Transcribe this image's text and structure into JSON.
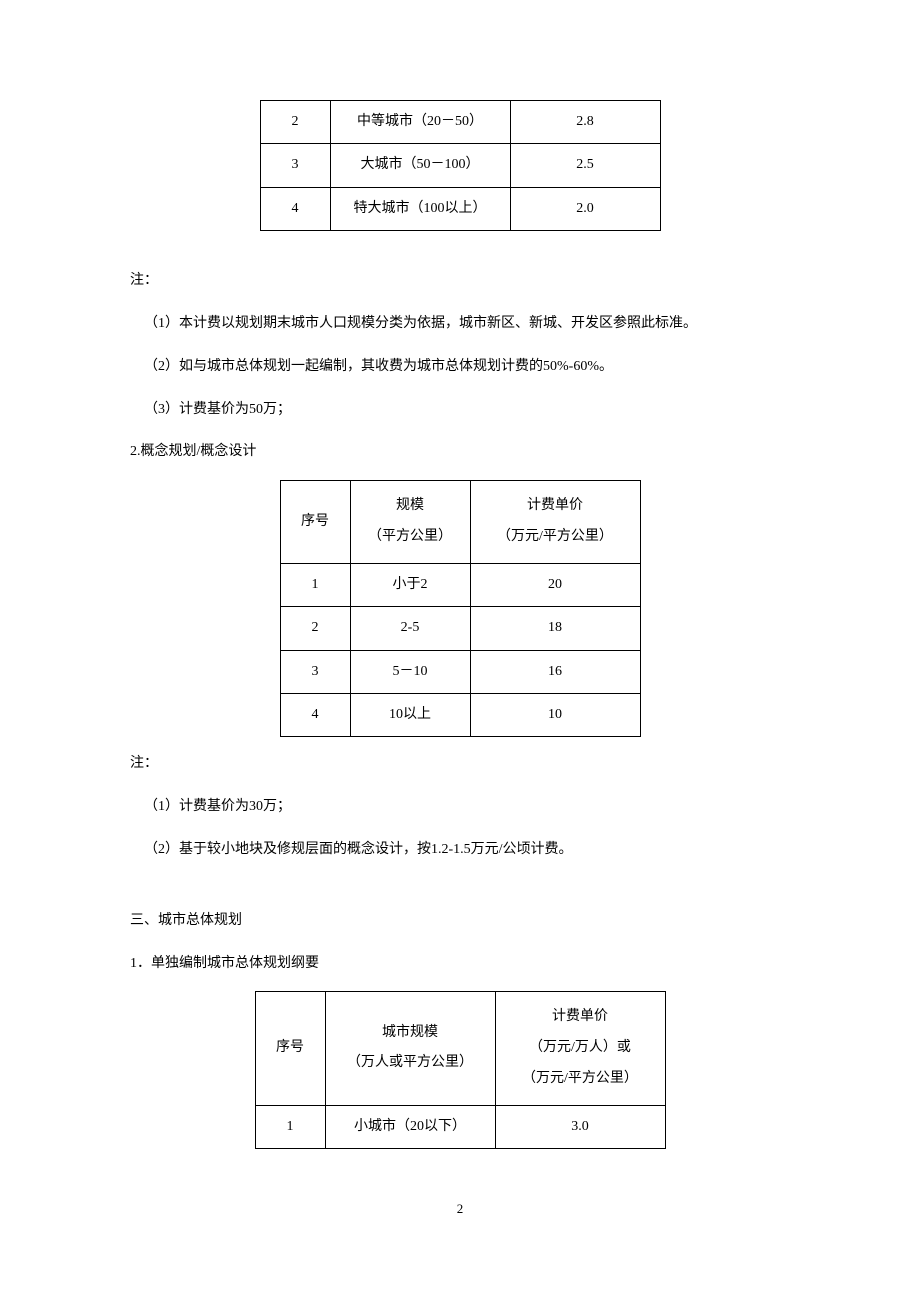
{
  "table1": {
    "rows": [
      {
        "no": "2",
        "city": "中等城市（20－50）",
        "price": "2.8"
      },
      {
        "no": "3",
        "city": "大城市（50－100）",
        "price": "2.5"
      },
      {
        "no": "4",
        "city": "特大城市（100以上）",
        "price": "2.0"
      }
    ]
  },
  "notes1": {
    "label": "注：",
    "n1": "（1）本计费以规划期末城市人口规模分类为依据，城市新区、新城、开发区参照此标准。",
    "n2": "（2）如与城市总体规划一起编制，其收费为城市总体规划计费的50%-60%。",
    "n3": "（3）计费基价为50万；"
  },
  "section2": {
    "title": "2.概念规划/概念设计",
    "header": {
      "col1": "序号",
      "col2_line1": "规模",
      "col2_line2": "（平方公里）",
      "col3_line1": "计费单价",
      "col3_line2": "（万元/平方公里）"
    },
    "rows": [
      {
        "no": "1",
        "scale": "小于2",
        "price": "20"
      },
      {
        "no": "2",
        "scale": "2-5",
        "price": "18"
      },
      {
        "no": "3",
        "scale": "5－10",
        "price": "16"
      },
      {
        "no": "4",
        "scale": "10以上",
        "price": "10"
      }
    ]
  },
  "notes2": {
    "label": "注：",
    "n1": "（1）计费基价为30万；",
    "n2": "（2）基于较小地块及修规层面的概念设计，按1.2-1.5万元/公顷计费。"
  },
  "section3": {
    "heading": "三、城市总体规划",
    "subheading": "1．单独编制城市总体规划纲要",
    "header": {
      "col1": "序号",
      "col2_line1": "城市规模",
      "col2_line2": "（万人或平方公里）",
      "col3_line1": "计费单价",
      "col3_line2": "（万元/万人）或",
      "col3_line3": "（万元/平方公里）"
    },
    "rows": [
      {
        "no": "1",
        "city": "小城市（20以下）",
        "price": "3.0"
      }
    ]
  },
  "page_number": "2"
}
